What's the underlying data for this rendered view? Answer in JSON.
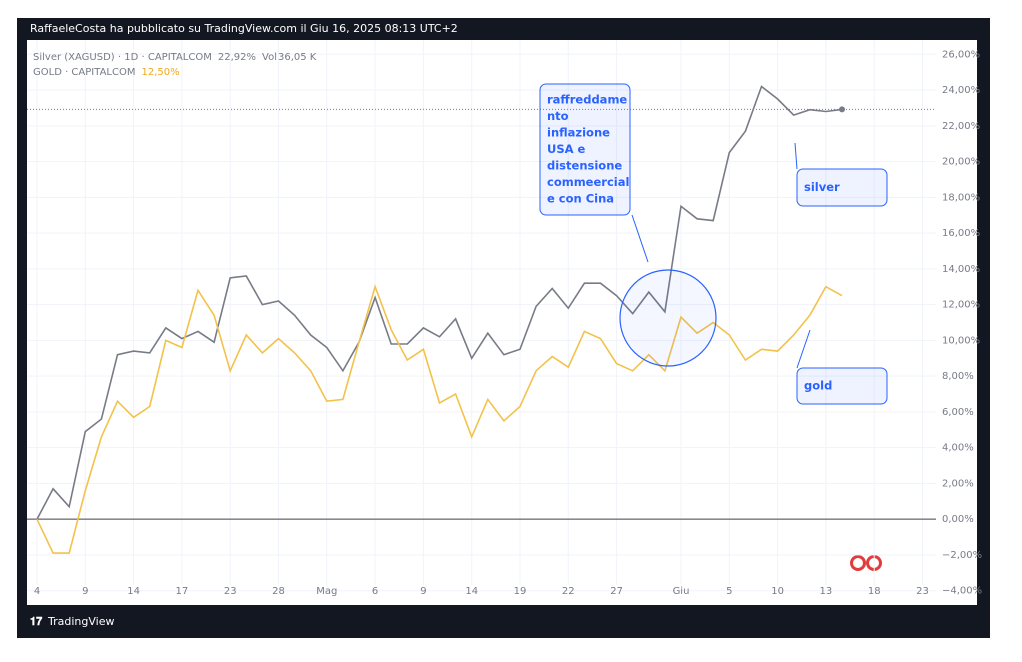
{
  "header": "RaffaeleCosta ha pubblicato su TradingView.com il Giu 16, 2025 08:13 UTC+2",
  "footer": "TradingView",
  "chart_data": {
    "type": "line",
    "categories": [
      "4",
      null,
      null,
      "9",
      null,
      null,
      "14",
      null,
      null,
      "17",
      null,
      null,
      "23",
      null,
      null,
      "28",
      null,
      null,
      "Mag",
      null,
      null,
      "6",
      null,
      null,
      "9",
      null,
      null,
      "14",
      null,
      null,
      "19",
      null,
      null,
      "22",
      null,
      null,
      "27",
      null,
      null,
      null,
      "Giu",
      null,
      null,
      "5",
      null,
      null,
      "10",
      null,
      null,
      "13",
      null,
      null,
      "18",
      null,
      null,
      "23"
    ],
    "series": [
      {
        "name": "Silver (XAGUSD) · 1D · CAPITALCOM",
        "color": "#787b86",
        "last_label": "22,92%",
        "volume_label": "Vol",
        "volume": "36,05 K",
        "values": [
          0,
          1.7,
          0.7,
          4.9,
          5.6,
          9.2,
          9.4,
          9.3,
          10.7,
          10.1,
          10.5,
          9.9,
          13.5,
          13.6,
          12.0,
          12.2,
          11.4,
          10.3,
          9.6,
          8.3,
          9.9,
          12.4,
          9.8,
          9.8,
          10.7,
          10.2,
          11.2,
          9.0,
          10.4,
          9.2,
          9.5,
          11.9,
          12.9,
          11.8,
          13.2,
          13.2,
          12.5,
          11.5,
          12.7,
          11.6,
          17.5,
          16.8,
          16.7,
          20.5,
          21.7,
          24.2,
          23.5,
          22.6,
          22.9,
          22.8,
          22.92,
          null,
          null,
          null,
          null,
          null
        ]
      },
      {
        "name": "GOLD · CAPITALCOM",
        "color": "#f2c24a",
        "label_color": "#f0a81e",
        "last_label": "12,50%",
        "values": [
          0,
          -1.9,
          -1.9,
          1.6,
          4.6,
          6.6,
          5.7,
          6.3,
          10.0,
          9.6,
          12.8,
          11.4,
          8.3,
          10.3,
          9.3,
          10.1,
          9.3,
          8.3,
          6.6,
          6.7,
          9.9,
          13.0,
          10.6,
          8.9,
          9.5,
          6.5,
          7.0,
          4.6,
          6.7,
          5.5,
          6.3,
          8.3,
          9.1,
          8.5,
          10.5,
          10.1,
          8.7,
          8.3,
          9.2,
          8.3,
          11.3,
          10.4,
          11.0,
          10.3,
          8.9,
          9.5,
          9.4,
          10.3,
          11.4,
          13.0,
          12.5,
          null,
          null,
          null,
          null,
          null
        ]
      }
    ],
    "ylim": [
      -4.8,
      26.8
    ],
    "yticks": [
      {
        "value": -4,
        "label": "−4,00%"
      },
      {
        "value": -2,
        "label": "−2,00%"
      },
      {
        "value": 0,
        "label": "0,00%"
      },
      {
        "value": 2,
        "label": "2,00%"
      },
      {
        "value": 4,
        "label": "4,00%"
      },
      {
        "value": 6,
        "label": "6,00%"
      },
      {
        "value": 8,
        "label": "8,00%"
      },
      {
        "value": 10,
        "label": "10,00%"
      },
      {
        "value": 12,
        "label": "12,00%"
      },
      {
        "value": 14,
        "label": "14,00%"
      },
      {
        "value": 16,
        "label": "16,00%"
      },
      {
        "value": 18,
        "label": "18,00%"
      },
      {
        "value": 20,
        "label": "20,00%"
      },
      {
        "value": 22,
        "label": "22,00%"
      },
      {
        "value": 24,
        "label": "24,00%"
      },
      {
        "value": 26,
        "label": "26,00%"
      }
    ],
    "grid": true,
    "annotations": [
      {
        "text": [
          "raffreddame",
          "nto",
          "inflazione",
          "USA e",
          "distensione",
          "commeercial",
          "e con Cina"
        ]
      },
      {
        "text": [
          "silver"
        ]
      },
      {
        "text": [
          "gold"
        ]
      }
    ]
  }
}
